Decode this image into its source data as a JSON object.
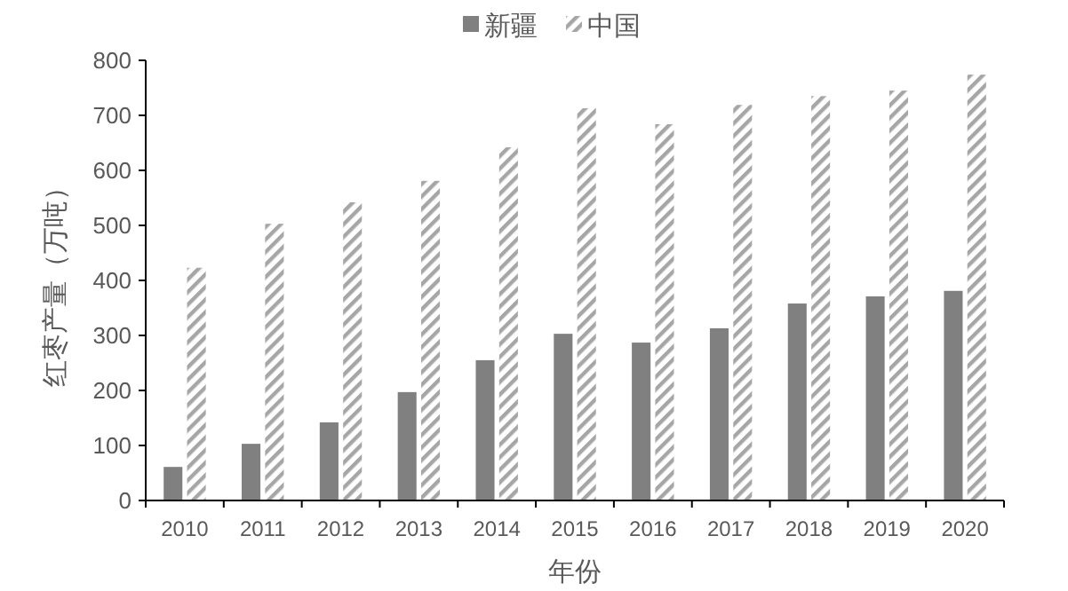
{
  "chart_data": {
    "type": "bar",
    "xlabel": "年份",
    "ylabel": "红枣产量（万吨）",
    "categories": [
      "2010",
      "2011",
      "2012",
      "2013",
      "2014",
      "2015",
      "2016",
      "2017",
      "2018",
      "2019",
      "2020"
    ],
    "series": [
      {
        "name": "新疆",
        "color": "#808080",
        "values": [
          61,
          103,
          142,
          197,
          255,
          303,
          287,
          313,
          358,
          371,
          381
        ]
      },
      {
        "name": "中国",
        "color": "#a6a6a6",
        "values": [
          423,
          503,
          542,
          581,
          642,
          713,
          684,
          719,
          735,
          745,
          774
        ]
      }
    ],
    "ylim": [
      0,
      800
    ],
    "yticks": [
      0,
      100,
      200,
      300,
      400,
      500,
      600,
      700,
      800
    ],
    "grid": false,
    "legend": "top"
  }
}
